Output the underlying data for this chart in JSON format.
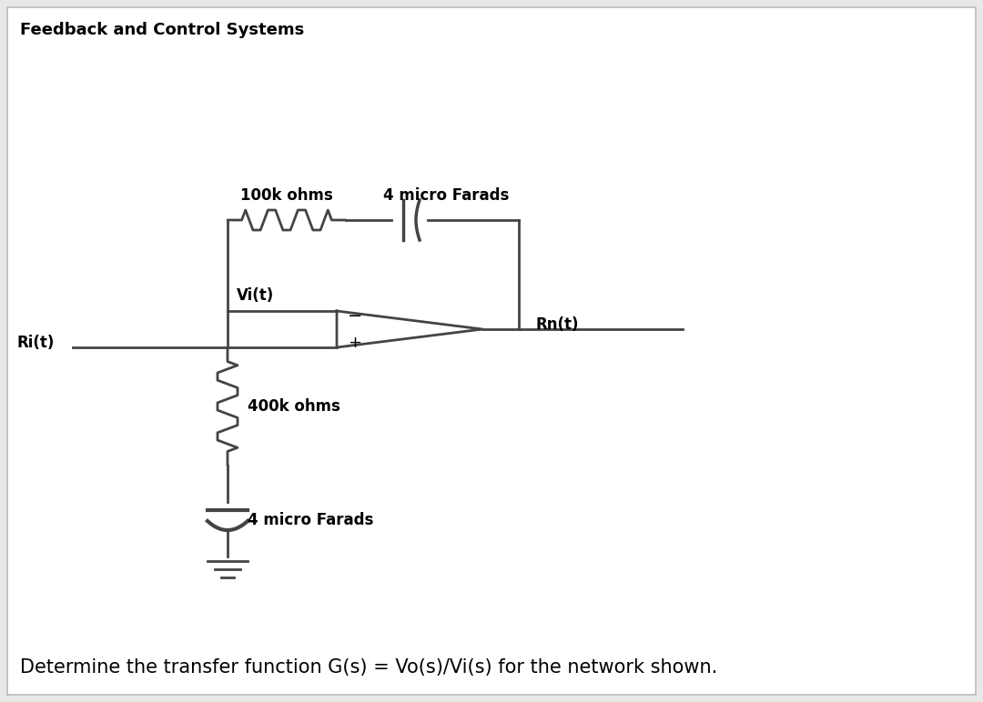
{
  "title": "Feedback and Control Systems",
  "bottom_text": "Determine the transfer function G(s) = Vo(s)/Vi(s) for the network shown.",
  "label_100k": "100k ohms",
  "label_4micro_top": "4 micro Farads",
  "label_vi": "Vi(t)",
  "label_ri": "Ri(t)",
  "label_rn": "Rn(t)",
  "label_400k": "400k ohms",
  "label_4micro_bot": "4 micro Farads",
  "bg_color": "#e8e8e8",
  "inner_bg": "#ffffff",
  "line_color": "#444444",
  "text_color": "#000000"
}
